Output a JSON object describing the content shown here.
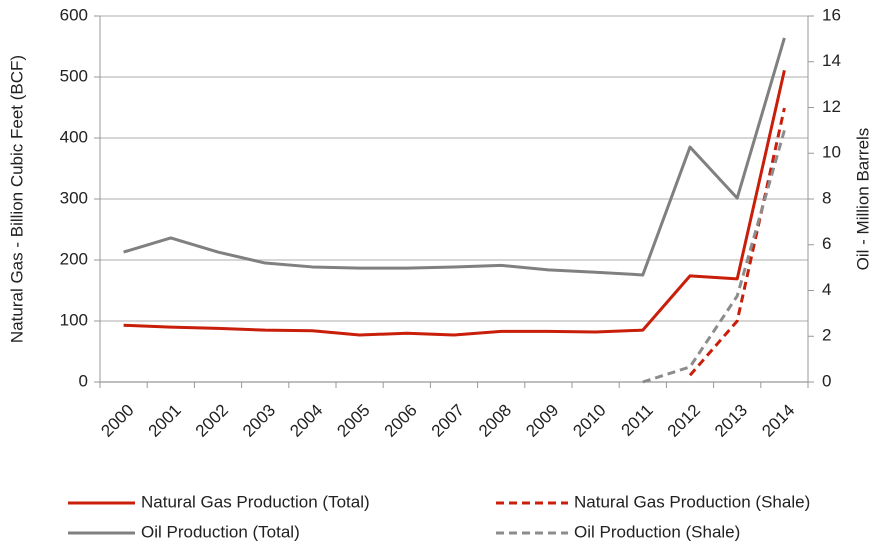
{
  "chart_data": {
    "type": "line",
    "ylabel": "Natural Gas - Billion Cubic Feet (BCF)",
    "y2label": "Oil - Million Barrels",
    "categories": [
      "2000",
      "2001",
      "2002",
      "2003",
      "2004",
      "2005",
      "2006",
      "2007",
      "2008",
      "2009",
      "2010",
      "2011",
      "2012",
      "2013",
      "2014"
    ],
    "ylim": [
      0,
      600
    ],
    "yticks": [
      0,
      100,
      200,
      300,
      400,
      500,
      600
    ],
    "y2lim": [
      0,
      16
    ],
    "y2ticks": [
      0,
      2,
      4,
      6,
      8,
      10,
      12,
      14,
      16
    ],
    "grid": true,
    "legend": "bottom",
    "series": [
      {
        "name": "Natural Gas Production (Total)",
        "color": "#c81e0a",
        "dash": false,
        "values": [
          93,
          90,
          88,
          85,
          84,
          77,
          80,
          77,
          83,
          83,
          82,
          85,
          174,
          169,
          511
        ]
      },
      {
        "name": "Natural Gas Production (Shale)",
        "color": "#c81e0a",
        "dash": true,
        "values": [
          null,
          null,
          null,
          null,
          null,
          null,
          null,
          null,
          null,
          null,
          null,
          null,
          11,
          100,
          449
        ]
      },
      {
        "name": "Oil Production (Total)",
        "color": "#808080",
        "dash": false,
        "axis": "y2",
        "values": [
          5.68,
          6.3,
          5.68,
          5.2,
          5.03,
          4.98,
          4.98,
          5.03,
          5.1,
          4.9,
          4.8,
          4.68,
          10.27,
          8.04,
          15.04
        ]
      },
      {
        "name": "Oil Production (Shale)",
        "color": "#8c8c8c",
        "dash": true,
        "axis": "y2",
        "values": [
          null,
          null,
          null,
          null,
          null,
          null,
          null,
          null,
          null,
          null,
          null,
          0,
          0.66,
          3.76,
          11.0
        ]
      }
    ]
  }
}
